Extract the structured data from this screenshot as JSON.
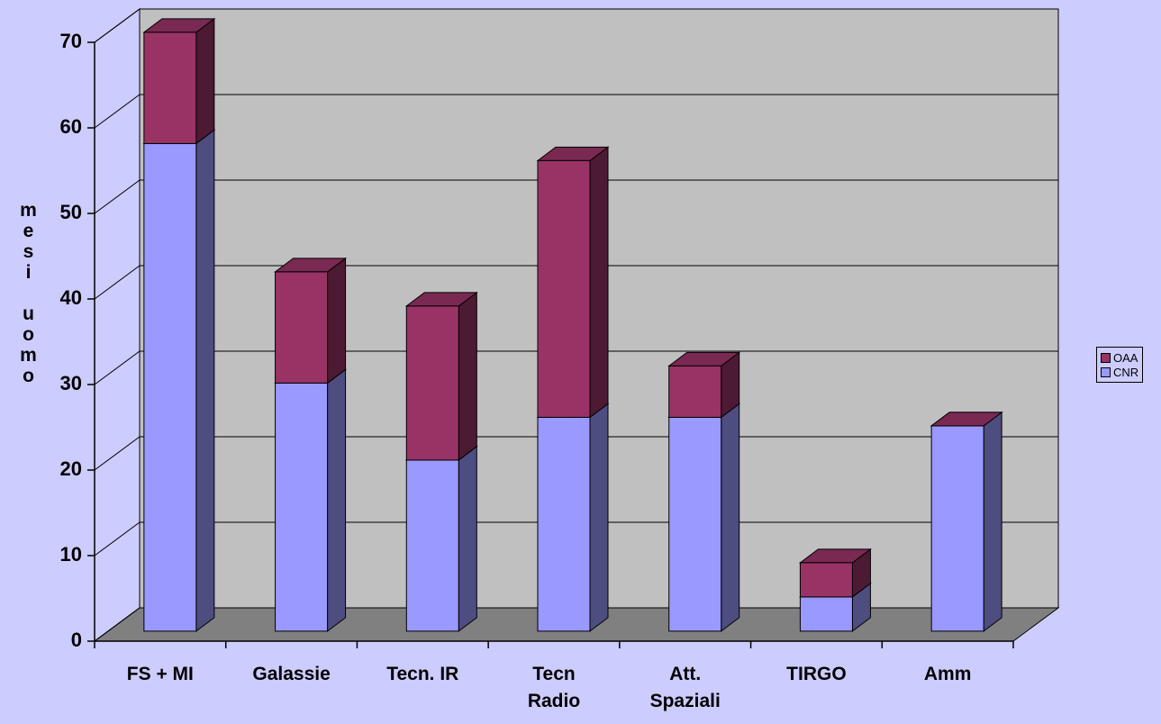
{
  "chart_data": {
    "type": "bar3d_stacked",
    "ylabel": "mesi uomo",
    "categories": [
      "FS + MI",
      "Galassie",
      "Tecn. IR",
      "Tecn Radio",
      "Att. Spaziali",
      "TIRGO",
      "Amm"
    ],
    "series": [
      {
        "name": "CNR",
        "color": "#9999ff",
        "values": [
          57,
          29,
          20,
          25,
          25,
          4,
          24
        ]
      },
      {
        "name": "OAA",
        "color": "#993366",
        "values": [
          13,
          13,
          18,
          30,
          6,
          4,
          0
        ]
      }
    ],
    "ylim": [
      0,
      70
    ],
    "yticks": [
      0,
      10,
      20,
      30,
      40,
      50,
      60,
      70
    ],
    "grid": true,
    "legend": "right"
  }
}
